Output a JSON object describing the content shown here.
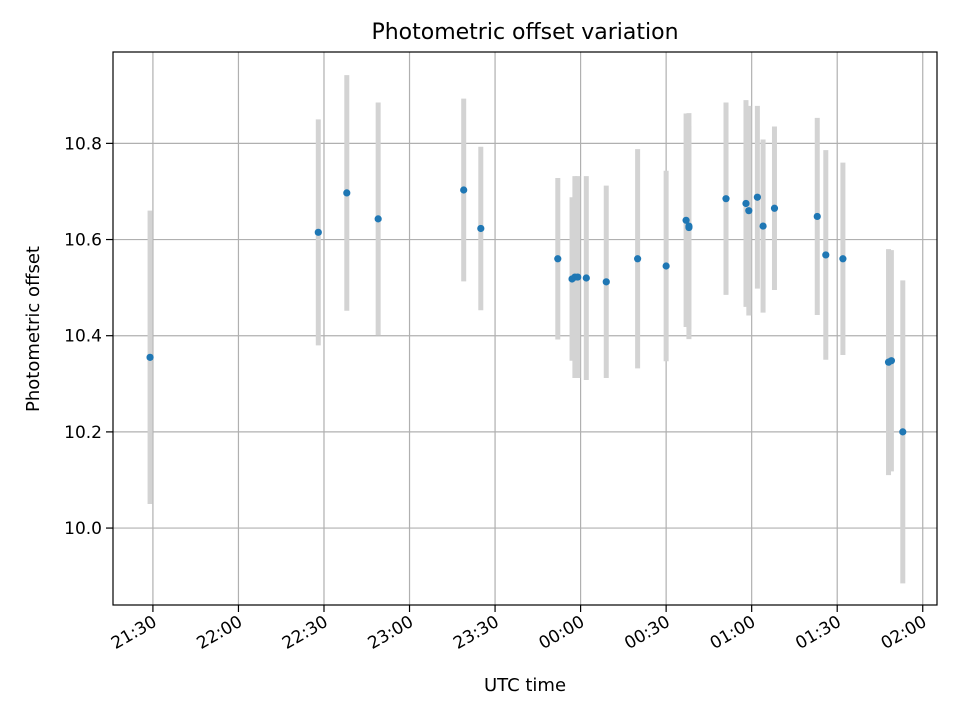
{
  "chart_data": {
    "type": "scatter",
    "title": "Photometric offset variation",
    "xlabel": "UTC time",
    "ylabel": "Photometric offset",
    "x_axis_type": "time",
    "x_ticks": [
      "21:30",
      "22:00",
      "22:30",
      "23:00",
      "23:30",
      "00:00",
      "00:30",
      "01:00",
      "01:30",
      "02:00"
    ],
    "x_range": [
      "21:16",
      "02:05"
    ],
    "ylim": [
      9.84,
      10.99
    ],
    "y_ticks": [
      10.0,
      10.2,
      10.4,
      10.6,
      10.8
    ],
    "y_tick_labels": [
      "10.0",
      "10.2",
      "10.4",
      "10.6",
      "10.8"
    ],
    "grid": true,
    "marker_color": "#1f77b4",
    "errorbar_color": "#d3d3d3",
    "points": [
      {
        "t": "21:29",
        "y": 10.355,
        "err": 0.305
      },
      {
        "t": "22:28",
        "y": 10.615,
        "err": 0.235
      },
      {
        "t": "22:38",
        "y": 10.697,
        "err": 0.245
      },
      {
        "t": "22:49",
        "y": 10.643,
        "err": 0.242
      },
      {
        "t": "23:19",
        "y": 10.703,
        "err": 0.19
      },
      {
        "t": "23:25",
        "y": 10.623,
        "err": 0.17
      },
      {
        "t": "23:52",
        "y": 10.56,
        "err": 0.168
      },
      {
        "t": "23:57",
        "y": 10.518,
        "err": 0.17
      },
      {
        "t": "23:58",
        "y": 10.522,
        "err": 0.21
      },
      {
        "t": "23:59",
        "y": 10.522,
        "err": 0.21
      },
      {
        "t": "00:02",
        "y": 10.52,
        "err": 0.212
      },
      {
        "t": "00:09",
        "y": 10.512,
        "err": 0.2
      },
      {
        "t": "00:20",
        "y": 10.56,
        "err": 0.228
      },
      {
        "t": "00:30",
        "y": 10.545,
        "err": 0.198
      },
      {
        "t": "00:37",
        "y": 10.64,
        "err": 0.222
      },
      {
        "t": "00:38",
        "y": 10.625,
        "err": 0.21
      },
      {
        "t": "00:38",
        "y": 10.628,
        "err": 0.235
      },
      {
        "t": "00:51",
        "y": 10.685,
        "err": 0.2
      },
      {
        "t": "00:58",
        "y": 10.675,
        "err": 0.215
      },
      {
        "t": "00:59",
        "y": 10.66,
        "err": 0.218
      },
      {
        "t": "01:02",
        "y": 10.688,
        "err": 0.19
      },
      {
        "t": "01:04",
        "y": 10.628,
        "err": 0.18
      },
      {
        "t": "01:08",
        "y": 10.665,
        "err": 0.17
      },
      {
        "t": "01:23",
        "y": 10.648,
        "err": 0.205
      },
      {
        "t": "01:26",
        "y": 10.568,
        "err": 0.218
      },
      {
        "t": "01:32",
        "y": 10.56,
        "err": 0.2
      },
      {
        "t": "01:48",
        "y": 10.345,
        "err": 0.235
      },
      {
        "t": "01:49",
        "y": 10.348,
        "err": 0.23
      },
      {
        "t": "01:53",
        "y": 10.2,
        "err": 0.315
      }
    ]
  }
}
